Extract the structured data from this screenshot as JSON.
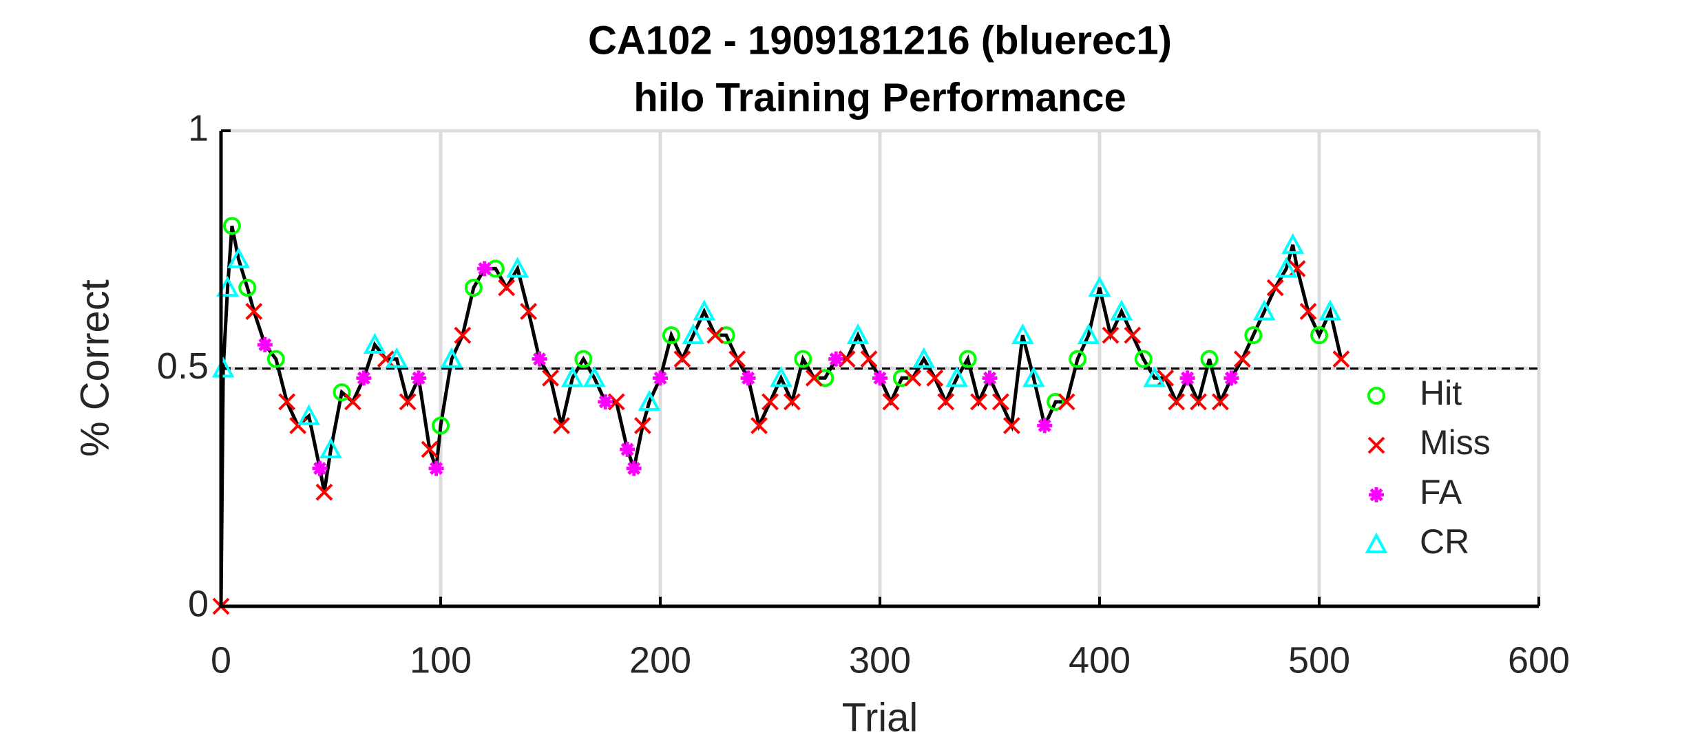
{
  "chart_data": {
    "type": "line",
    "title": "CA102 - 1909181216 (bluerec1)",
    "subtitle": "hilo Training Performance",
    "x_label": "Trial",
    "y_label": "% Correct",
    "xlim": [
      0,
      600
    ],
    "xticks": [
      0,
      100,
      200,
      300,
      400,
      500,
      600
    ],
    "ylim": [
      0,
      1
    ],
    "yticks": [
      0,
      0.5,
      1
    ],
    "grid": true,
    "reference_line": 0.5,
    "legend": "east",
    "line": {
      "color": "#000000",
      "x": [
        0,
        1,
        3,
        5,
        8,
        12,
        15,
        20,
        25,
        30,
        35,
        40,
        45,
        47,
        50,
        55,
        60,
        65,
        70,
        75,
        80,
        85,
        90,
        95,
        98,
        100,
        105,
        110,
        115,
        120,
        125,
        130,
        135,
        140,
        145,
        150,
        155,
        160,
        165,
        170,
        175,
        180,
        185,
        188,
        192,
        195,
        200,
        205,
        210,
        215,
        220,
        225,
        230,
        235,
        240,
        245,
        250,
        255,
        260,
        265,
        270,
        275,
        280,
        285,
        290,
        295,
        300,
        305,
        310,
        315,
        320,
        325,
        330,
        335,
        340,
        345,
        350,
        355,
        360,
        365,
        370,
        375,
        380,
        385,
        390,
        395,
        400,
        405,
        410,
        415,
        420,
        425,
        430,
        435,
        440,
        445,
        450,
        455,
        460,
        465,
        470,
        475,
        480,
        485,
        488,
        490,
        495,
        500,
        505,
        510
      ],
      "y": [
        0,
        0.5,
        0.67,
        0.8,
        0.73,
        0.67,
        0.62,
        0.55,
        0.52,
        0.43,
        0.38,
        0.4,
        0.29,
        0.24,
        0.33,
        0.45,
        0.43,
        0.48,
        0.55,
        0.52,
        0.52,
        0.43,
        0.48,
        0.33,
        0.29,
        0.38,
        0.52,
        0.57,
        0.67,
        0.71,
        0.71,
        0.67,
        0.71,
        0.62,
        0.52,
        0.48,
        0.38,
        0.48,
        0.52,
        0.48,
        0.43,
        0.43,
        0.33,
        0.29,
        0.38,
        0.43,
        0.48,
        0.57,
        0.52,
        0.57,
        0.62,
        0.57,
        0.57,
        0.52,
        0.48,
        0.38,
        0.43,
        0.48,
        0.43,
        0.52,
        0.48,
        0.48,
        0.52,
        0.52,
        0.57,
        0.52,
        0.48,
        0.43,
        0.48,
        0.48,
        0.52,
        0.48,
        0.43,
        0.48,
        0.52,
        0.43,
        0.48,
        0.43,
        0.38,
        0.57,
        0.48,
        0.38,
        0.43,
        0.43,
        0.52,
        0.57,
        0.67,
        0.57,
        0.62,
        0.57,
        0.52,
        0.48,
        0.48,
        0.43,
        0.48,
        0.43,
        0.52,
        0.43,
        0.48,
        0.52,
        0.57,
        0.62,
        0.67,
        0.71,
        0.76,
        0.71,
        0.62,
        0.57,
        0.62,
        0.52
      ]
    },
    "series": [
      {
        "name": "Hit",
        "color": "#00ff00",
        "marker": "o",
        "x": [
          5,
          12,
          25,
          55,
          100,
          115,
          125,
          165,
          205,
          230,
          265,
          275,
          310,
          340,
          380,
          390,
          420,
          450,
          470,
          500
        ],
        "y": [
          0.8,
          0.67,
          0.52,
          0.45,
          0.38,
          0.67,
          0.71,
          0.52,
          0.57,
          0.57,
          0.52,
          0.48,
          0.48,
          0.52,
          0.43,
          0.52,
          0.52,
          0.52,
          0.57,
          0.57
        ]
      },
      {
        "name": "Miss",
        "color": "#ff0000",
        "marker": "x",
        "x": [
          0,
          15,
          30,
          35,
          47,
          60,
          75,
          85,
          95,
          110,
          130,
          140,
          150,
          155,
          180,
          192,
          210,
          225,
          235,
          245,
          250,
          260,
          270,
          285,
          295,
          305,
          315,
          325,
          330,
          345,
          355,
          360,
          385,
          405,
          415,
          430,
          435,
          445,
          455,
          465,
          480,
          490,
          495,
          510
        ],
        "y": [
          0,
          0.62,
          0.43,
          0.38,
          0.24,
          0.43,
          0.52,
          0.43,
          0.33,
          0.57,
          0.67,
          0.62,
          0.48,
          0.38,
          0.43,
          0.38,
          0.52,
          0.57,
          0.52,
          0.38,
          0.43,
          0.43,
          0.48,
          0.52,
          0.52,
          0.43,
          0.48,
          0.48,
          0.43,
          0.43,
          0.43,
          0.38,
          0.43,
          0.57,
          0.57,
          0.48,
          0.43,
          0.43,
          0.43,
          0.52,
          0.67,
          0.71,
          0.62,
          0.52
        ]
      },
      {
        "name": "FA",
        "color": "#ff00ff",
        "marker": "*",
        "x": [
          20,
          45,
          65,
          90,
          98,
          120,
          145,
          175,
          185,
          188,
          200,
          240,
          280,
          300,
          350,
          375,
          440,
          460
        ],
        "y": [
          0.55,
          0.29,
          0.48,
          0.48,
          0.29,
          0.71,
          0.52,
          0.43,
          0.33,
          0.29,
          0.48,
          0.48,
          0.52,
          0.48,
          0.48,
          0.38,
          0.48,
          0.48
        ]
      },
      {
        "name": "CR",
        "color": "#00ffff",
        "marker": "^",
        "x": [
          1,
          3,
          8,
          40,
          50,
          70,
          80,
          105,
          135,
          160,
          170,
          195,
          215,
          220,
          255,
          290,
          320,
          335,
          365,
          370,
          395,
          400,
          410,
          425,
          475,
          485,
          488,
          505
        ],
        "y": [
          0.5,
          0.67,
          0.73,
          0.4,
          0.33,
          0.55,
          0.52,
          0.52,
          0.71,
          0.48,
          0.48,
          0.43,
          0.57,
          0.62,
          0.48,
          0.57,
          0.52,
          0.48,
          0.57,
          0.48,
          0.57,
          0.67,
          0.62,
          0.48,
          0.62,
          0.71,
          0.76,
          0.62
        ]
      }
    ]
  }
}
